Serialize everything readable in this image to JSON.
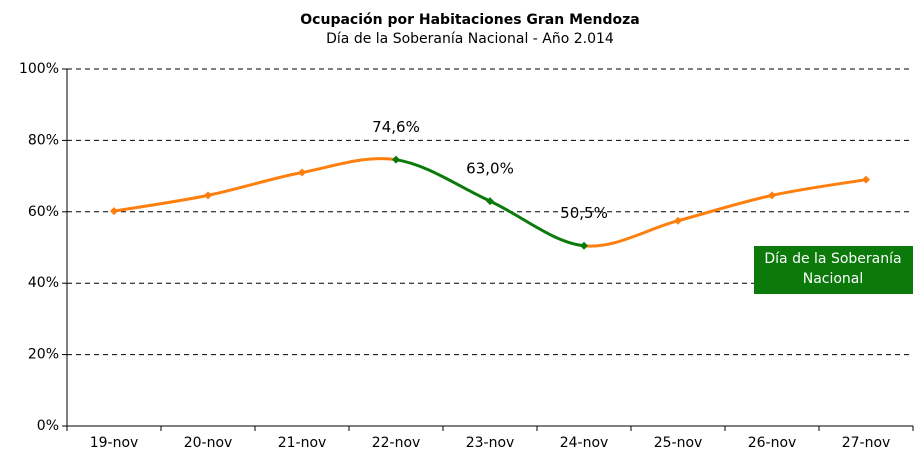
{
  "chart_data": {
    "type": "line",
    "title": "Ocupación por Habitaciones Gran Mendoza",
    "subtitle": "Día de la Soberanía Nacional - Año 2.014",
    "categories": [
      "19-nov",
      "20-nov",
      "21-nov",
      "22-nov",
      "23-nov",
      "24-nov",
      "25-nov",
      "26-nov",
      "27-nov"
    ],
    "series": [
      {
        "name": "Ocupación",
        "color": "#ff7f0e",
        "values": [
          60.2,
          64.6,
          71.0,
          74.6,
          63.0,
          50.5,
          57.5,
          64.6,
          69.0
        ],
        "value_labels": [
          null,
          null,
          null,
          "74,6%",
          "63,0%",
          "50,5%",
          null,
          null,
          null
        ],
        "point_colors": [
          "#ff7f0e",
          "#ff7f0e",
          "#ff7f0e",
          "#0b7a0b",
          "#0b7a0b",
          "#0b7a0b",
          "#ff7f0e",
          "#ff7f0e",
          "#ff7f0e"
        ]
      }
    ],
    "annotation": {
      "text": [
        "Día de la Soberanía",
        "Nacional"
      ],
      "color": "#0b7a0b"
    },
    "ylim": [
      0,
      100
    ],
    "yticks": [
      {
        "value": 0,
        "label": "0%"
      },
      {
        "value": 20,
        "label": "20%"
      },
      {
        "value": 40,
        "label": "40%"
      },
      {
        "value": 60,
        "label": "60%"
      },
      {
        "value": 80,
        "label": "80%"
      },
      {
        "value": 100,
        "label": "100%"
      }
    ],
    "grid": true
  }
}
